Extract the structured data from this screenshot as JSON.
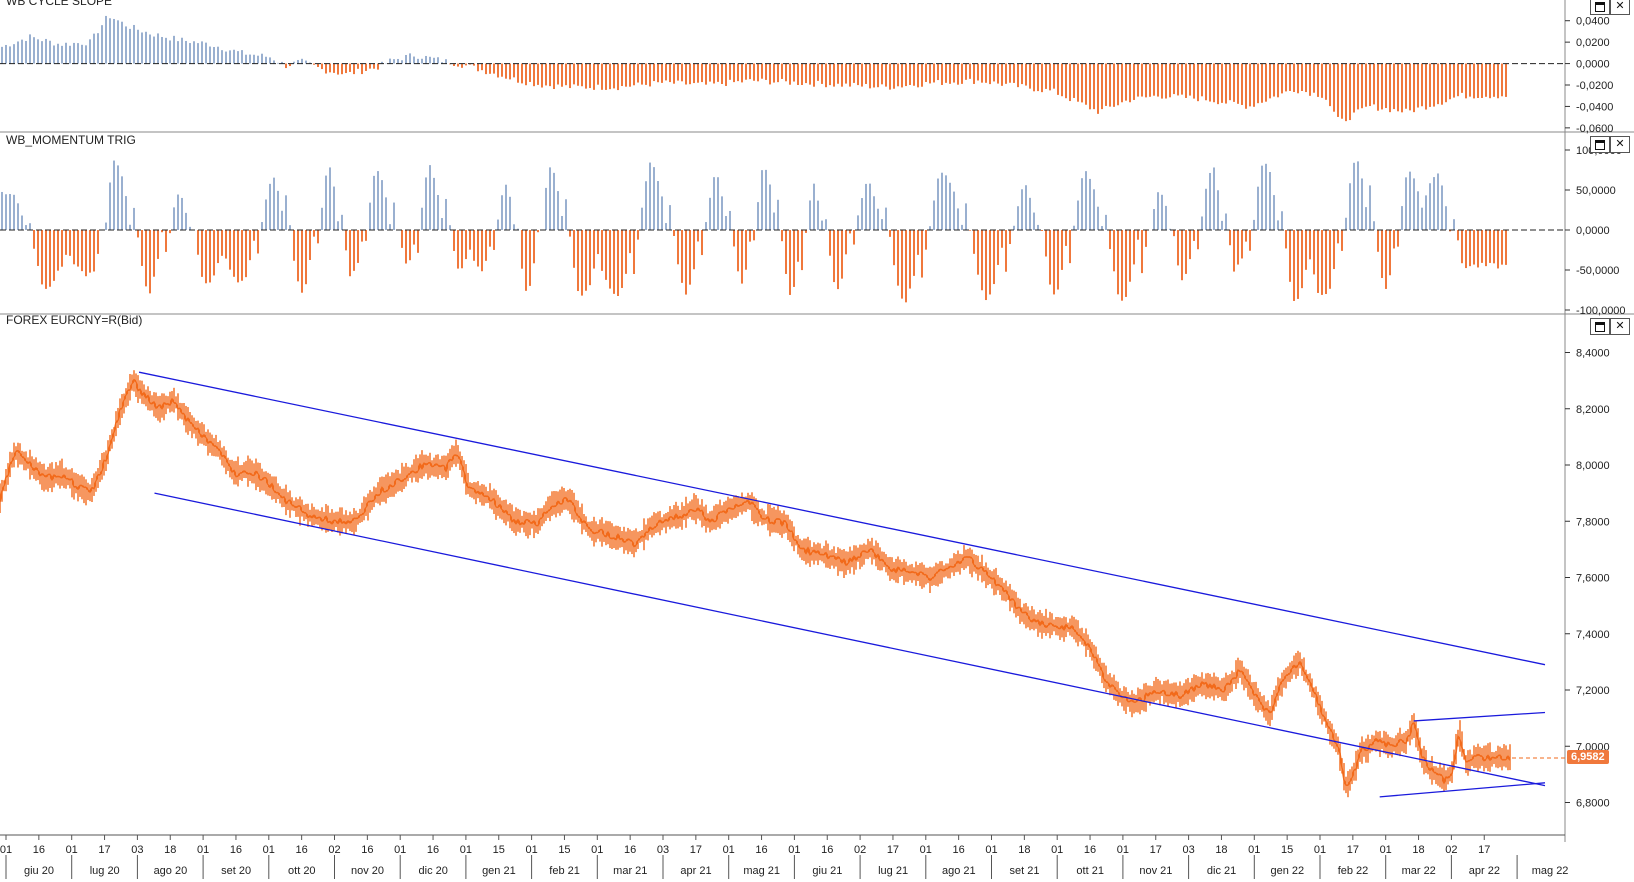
{
  "panels": [
    {
      "title": "WB CYCLE SLOPE"
    },
    {
      "title": "WB_MOMENTUM TRIG"
    },
    {
      "title": "FOREX EURCNY=R(Bid)"
    }
  ],
  "last_price_label": "6,9582",
  "colors": {
    "up": "#9ab0d0",
    "down": "#f0783c",
    "price": "#f26a1b",
    "trend": "#1a1adc"
  },
  "chart_data": [
    {
      "type": "bar",
      "title": "WB CYCLE SLOPE",
      "y_ticks": [
        "0,0400",
        "0,0200",
        "0,0000",
        "-0,0200",
        "-0,0400",
        "-0,0600"
      ],
      "y_tick_values": [
        0.04,
        0.02,
        0,
        -0.02,
        -0.04,
        -0.06
      ],
      "ylim": [
        -0.062,
        0.05
      ],
      "profile": [
        [
          0,
          0.015
        ],
        [
          0.02,
          0.025
        ],
        [
          0.04,
          0.018
        ],
        [
          0.06,
          0.02
        ],
        [
          0.072,
          0.045
        ],
        [
          0.085,
          0.035
        ],
        [
          0.1,
          0.028
        ],
        [
          0.12,
          0.022
        ],
        [
          0.14,
          0.018
        ],
        [
          0.16,
          0.01
        ],
        [
          0.18,
          0.006
        ],
        [
          0.19,
          -0.002
        ],
        [
          0.2,
          0.002
        ],
        [
          0.215,
          -0.006
        ],
        [
          0.23,
          -0.01
        ],
        [
          0.25,
          -0.004
        ],
        [
          0.26,
          0.003
        ],
        [
          0.275,
          0.008
        ],
        [
          0.29,
          0.004
        ],
        [
          0.31,
          -0.002
        ],
        [
          0.33,
          -0.01
        ],
        [
          0.345,
          -0.016
        ],
        [
          0.36,
          -0.02
        ],
        [
          0.38,
          -0.022
        ],
        [
          0.41,
          -0.022
        ],
        [
          0.44,
          -0.018
        ],
        [
          0.47,
          -0.02
        ],
        [
          0.5,
          -0.016
        ],
        [
          0.53,
          -0.018
        ],
        [
          0.56,
          -0.02
        ],
        [
          0.59,
          -0.022
        ],
        [
          0.62,
          -0.018
        ],
        [
          0.65,
          -0.016
        ],
        [
          0.67,
          -0.02
        ],
        [
          0.7,
          -0.026
        ],
        [
          0.73,
          -0.045
        ],
        [
          0.75,
          -0.034
        ],
        [
          0.77,
          -0.03
        ],
        [
          0.8,
          -0.033
        ],
        [
          0.83,
          -0.04
        ],
        [
          0.86,
          -0.024
        ],
        [
          0.88,
          -0.03
        ],
        [
          0.89,
          -0.055
        ],
        [
          0.91,
          -0.04
        ],
        [
          0.935,
          -0.045
        ],
        [
          0.96,
          -0.035
        ],
        [
          0.97,
          -0.03
        ]
      ]
    },
    {
      "type": "bar",
      "title": "WB_MOMENTUM TRIG",
      "y_ticks": [
        "100,0000",
        "50,0000",
        "0,0000",
        "-50,0000",
        "-100,0000"
      ],
      "y_tick_values": [
        100,
        50,
        0,
        -50,
        -100
      ],
      "ylim": [
        -100,
        100
      ],
      "cycle_peaks": [
        [
          0.006,
          45
        ],
        [
          0.03,
          -75
        ],
        [
          0.06,
          -55
        ],
        [
          0.076,
          90
        ],
        [
          0.098,
          -78
        ],
        [
          0.118,
          42
        ],
        [
          0.136,
          -70
        ],
        [
          0.16,
          -65
        ],
        [
          0.18,
          65
        ],
        [
          0.2,
          -80
        ],
        [
          0.218,
          78
        ],
        [
          0.233,
          -60
        ],
        [
          0.25,
          78
        ],
        [
          0.27,
          -45
        ],
        [
          0.285,
          80
        ],
        [
          0.305,
          -55
        ],
        [
          0.32,
          -50
        ],
        [
          0.335,
          55
        ],
        [
          0.35,
          -82
        ],
        [
          0.365,
          78
        ],
        [
          0.385,
          -85
        ],
        [
          0.41,
          -80
        ],
        [
          0.432,
          85
        ],
        [
          0.455,
          -80
        ],
        [
          0.475,
          70
        ],
        [
          0.492,
          -65
        ],
        [
          0.507,
          78
        ],
        [
          0.525,
          -85
        ],
        [
          0.54,
          55
        ],
        [
          0.555,
          -75
        ],
        [
          0.575,
          60
        ],
        [
          0.6,
          -90
        ],
        [
          0.625,
          75
        ],
        [
          0.655,
          -85
        ],
        [
          0.68,
          55
        ],
        [
          0.7,
          -80
        ],
        [
          0.72,
          75
        ],
        [
          0.745,
          -92
        ],
        [
          0.77,
          50
        ],
        [
          0.785,
          -60
        ],
        [
          0.805,
          80
        ],
        [
          0.82,
          -50
        ],
        [
          0.84,
          85
        ],
        [
          0.86,
          -90
        ],
        [
          0.88,
          -85
        ],
        [
          0.9,
          88
        ],
        [
          0.92,
          -75
        ],
        [
          0.935,
          75
        ],
        [
          0.955,
          70
        ],
        [
          0.972,
          -45
        ]
      ]
    },
    {
      "type": "line",
      "title": "FOREX EURCNY=R(Bid)",
      "y_ticks": [
        "8,4000",
        "8,2000",
        "8,0000",
        "7,8000",
        "7,6000",
        "7,4000",
        "7,2000",
        "7,0000",
        "6,8000"
      ],
      "y_tick_values": [
        8.4,
        8.2,
        8.0,
        7.8,
        7.6,
        7.4,
        7.2,
        7.0,
        6.8
      ],
      "ylim": [
        6.72,
        8.48
      ],
      "last_value": 6.9582,
      "x_ticks_top": [
        "01",
        "16",
        "01",
        "17",
        "03",
        "18",
        "01",
        "16",
        "01",
        "16",
        "02",
        "16",
        "01",
        "16",
        "01",
        "15",
        "01",
        "15",
        "01",
        "16",
        "03",
        "17",
        "01",
        "16",
        "01",
        "16",
        "02",
        "17",
        "01",
        "16",
        "01",
        "18",
        "01",
        "16",
        "01",
        "17",
        "03",
        "18",
        "01",
        "15",
        "01",
        "17",
        "01",
        "18",
        "02",
        "17"
      ],
      "x_months": [
        "giu 20",
        "lug 20",
        "ago 20",
        "set 20",
        "ott 20",
        "nov 20",
        "dic 20",
        "gen 21",
        "feb 21",
        "mar 21",
        "apr 21",
        "mag 21",
        "giu 21",
        "lug 21",
        "ago 21",
        "set 21",
        "ott 21",
        "nov 21",
        "dic 21",
        "gen 22",
        "feb 22",
        "mar 22",
        "apr 22",
        "mag 22"
      ],
      "series": [
        {
          "values_keypoints": [
            [
              0.0,
              7.88
            ],
            [
              0.01,
              8.05
            ],
            [
              0.02,
              8.0
            ],
            [
              0.03,
              7.95
            ],
            [
              0.04,
              7.97
            ],
            [
              0.05,
              7.93
            ],
            [
              0.06,
              7.9
            ],
            [
              0.07,
              8.02
            ],
            [
              0.08,
              8.2
            ],
            [
              0.088,
              8.3
            ],
            [
              0.095,
              8.25
            ],
            [
              0.105,
              8.2
            ],
            [
              0.115,
              8.23
            ],
            [
              0.125,
              8.15
            ],
            [
              0.135,
              8.1
            ],
            [
              0.145,
              8.05
            ],
            [
              0.155,
              7.97
            ],
            [
              0.165,
              7.98
            ],
            [
              0.175,
              7.95
            ],
            [
              0.19,
              7.87
            ],
            [
              0.205,
              7.82
            ],
            [
              0.22,
              7.8
            ],
            [
              0.235,
              7.8
            ],
            [
              0.25,
              7.9
            ],
            [
              0.265,
              7.95
            ],
            [
              0.28,
              8.0
            ],
            [
              0.295,
              7.99
            ],
            [
              0.302,
              8.05
            ],
            [
              0.31,
              7.92
            ],
            [
              0.325,
              7.88
            ],
            [
              0.34,
              7.8
            ],
            [
              0.355,
              7.79
            ],
            [
              0.365,
              7.86
            ],
            [
              0.375,
              7.88
            ],
            [
              0.39,
              7.77
            ],
            [
              0.405,
              7.75
            ],
            [
              0.42,
              7.72
            ],
            [
              0.43,
              7.78
            ],
            [
              0.45,
              7.82
            ],
            [
              0.46,
              7.85
            ],
            [
              0.47,
              7.8
            ],
            [
              0.485,
              7.85
            ],
            [
              0.495,
              7.87
            ],
            [
              0.505,
              7.81
            ],
            [
              0.52,
              7.79
            ],
            [
              0.53,
              7.7
            ],
            [
              0.545,
              7.68
            ],
            [
              0.56,
              7.65
            ],
            [
              0.575,
              7.7
            ],
            [
              0.59,
              7.63
            ],
            [
              0.6,
              7.62
            ],
            [
              0.615,
              7.6
            ],
            [
              0.63,
              7.64
            ],
            [
              0.64,
              7.67
            ],
            [
              0.655,
              7.6
            ],
            [
              0.665,
              7.55
            ],
            [
              0.675,
              7.48
            ],
            [
              0.685,
              7.44
            ],
            [
              0.695,
              7.43
            ],
            [
              0.71,
              7.42
            ],
            [
              0.72,
              7.36
            ],
            [
              0.73,
              7.25
            ],
            [
              0.74,
              7.18
            ],
            [
              0.75,
              7.15
            ],
            [
              0.765,
              7.2
            ],
            [
              0.78,
              7.18
            ],
            [
              0.795,
              7.22
            ],
            [
              0.81,
              7.2
            ],
            [
              0.82,
              7.27
            ],
            [
              0.83,
              7.18
            ],
            [
              0.84,
              7.11
            ],
            [
              0.845,
              7.2
            ],
            [
              0.855,
              7.28
            ],
            [
              0.86,
              7.3
            ],
            [
              0.87,
              7.18
            ],
            [
              0.88,
              7.05
            ],
            [
              0.885,
              7.0
            ],
            [
              0.89,
              6.86
            ],
            [
              0.895,
              6.9
            ],
            [
              0.9,
              6.98
            ],
            [
              0.91,
              7.02
            ],
            [
              0.92,
              7.0
            ],
            [
              0.93,
              7.02
            ],
            [
              0.935,
              7.08
            ],
            [
              0.94,
              6.97
            ],
            [
              0.945,
              6.92
            ],
            [
              0.955,
              6.88
            ],
            [
              0.96,
              6.9
            ],
            [
              0.965,
              7.05
            ],
            [
              0.97,
              6.93
            ],
            [
              0.975,
              6.96
            ]
          ]
        }
      ],
      "trendlines": [
        {
          "from": [
            0.09,
            8.33
          ],
          "to": [
            1.0,
            7.29
          ]
        },
        {
          "from": [
            0.1,
            7.9
          ],
          "to": [
            1.0,
            6.86
          ]
        },
        {
          "from": [
            0.915,
            7.09
          ],
          "to": [
            1.0,
            7.12
          ]
        },
        {
          "from": [
            0.893,
            6.82
          ],
          "to": [
            1.0,
            6.87
          ]
        }
      ]
    }
  ]
}
